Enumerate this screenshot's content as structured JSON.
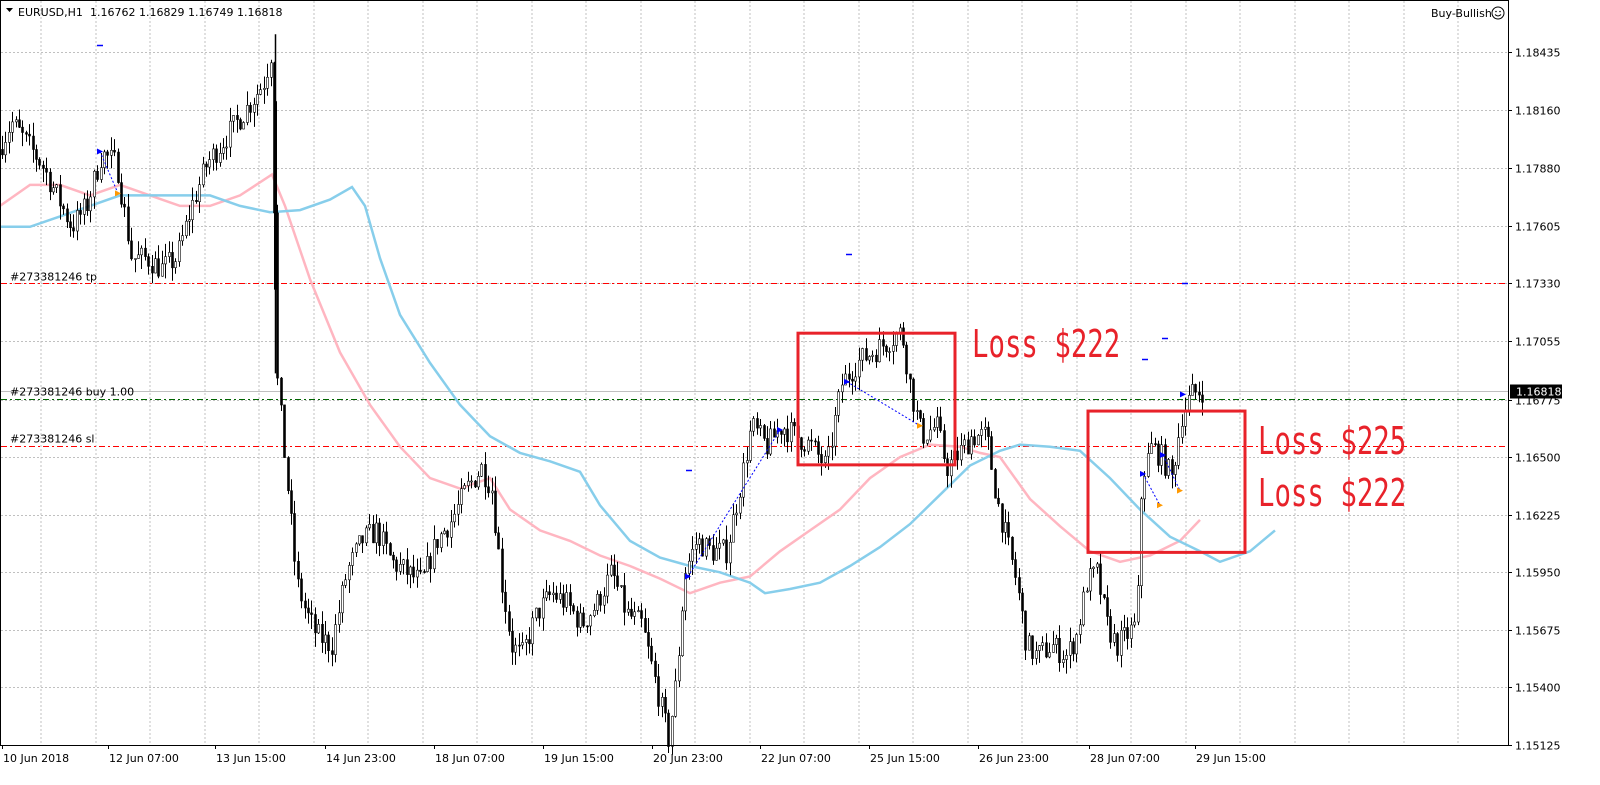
{
  "header": {
    "symbol": "EURUSD,H1",
    "ohlc": "1.16762 1.16829 1.16749 1.16818",
    "ea_name": "Buy-Bullish",
    "ea_icon": "smiley-icon"
  },
  "order_lines": {
    "tp_label": "#273381246 tp",
    "buy_label": "#273381246 buy 1.00",
    "sl_label": "#273381246 sl",
    "tp_price": 1.1733,
    "buy_price": 1.1678,
    "sl_price": 1.16555
  },
  "annotations": [
    {
      "text": "Loss $222"
    },
    {
      "text": "Loss $225"
    },
    {
      "text": "Loss $222"
    }
  ],
  "colors": {
    "candle": "#000000",
    "ma_slow": "#87ceeb",
    "ma_fast": "#ffb6c1",
    "tp_sl_line": "#ff0000",
    "buy_line": "#006400",
    "annotation": "#e8222a",
    "grid": "#c0c0c0"
  },
  "chart_data": {
    "type": "candlestick",
    "symbol": "EURUSD",
    "timeframe": "H1",
    "ylim": [
      1.15,
      1.186
    ],
    "y_ticks": [
      "1.18435",
      "1.18160",
      "1.17880",
      "1.17605",
      "1.17330",
      "1.17055",
      "1.16775",
      "1.16500",
      "1.16225",
      "1.15950",
      "1.15675",
      "1.15400",
      "1.15125"
    ],
    "x_ticks": [
      "10 Jun 2018",
      "12 Jun 07:00",
      "13 Jun 15:00",
      "14 Jun 23:00",
      "18 Jun 07:00",
      "19 Jun 15:00",
      "20 Jun 23:00",
      "22 Jun 07:00",
      "25 Jun 15:00",
      "26 Jun 23:00",
      "28 Jun 07:00",
      "29 Jun 15:00"
    ],
    "current_price": "1.16818",
    "grid": true,
    "close_path": [
      [
        0,
        1.1795
      ],
      [
        15,
        1.181
      ],
      [
        30,
        1.18
      ],
      [
        45,
        1.179
      ],
      [
        60,
        1.1775
      ],
      [
        75,
        1.176
      ],
      [
        90,
        1.177
      ],
      [
        105,
        1.1795
      ],
      [
        120,
        1.179
      ],
      [
        135,
        1.1745
      ],
      [
        150,
        1.1745
      ],
      [
        165,
        1.174
      ],
      [
        180,
        1.1745
      ],
      [
        195,
        1.177
      ],
      [
        210,
        1.179
      ],
      [
        225,
        1.18
      ],
      [
        240,
        1.181
      ],
      [
        255,
        1.182
      ],
      [
        268,
        1.183
      ],
      [
        275,
        1.1845
      ],
      [
        280,
        1.169
      ],
      [
        290,
        1.164
      ],
      [
        300,
        1.159
      ],
      [
        310,
        1.1575
      ],
      [
        320,
        1.1565
      ],
      [
        335,
        1.156
      ],
      [
        350,
        1.1595
      ],
      [
        365,
        1.161
      ],
      [
        380,
        1.1615
      ],
      [
        395,
        1.16
      ],
      [
        410,
        1.1595
      ],
      [
        425,
        1.159
      ],
      [
        440,
        1.161
      ],
      [
        455,
        1.162
      ],
      [
        470,
        1.1635
      ],
      [
        485,
        1.1645
      ],
      [
        495,
        1.1635
      ],
      [
        505,
        1.159
      ],
      [
        515,
        1.156
      ],
      [
        525,
        1.1555
      ],
      [
        540,
        1.1575
      ],
      [
        555,
        1.1585
      ],
      [
        570,
        1.158
      ],
      [
        585,
        1.157
      ],
      [
        600,
        1.158
      ],
      [
        615,
        1.1595
      ],
      [
        630,
        1.1575
      ],
      [
        645,
        1.157
      ],
      [
        660,
        1.154
      ],
      [
        672,
        1.1515
      ],
      [
        680,
        1.1545
      ],
      [
        688,
        1.1595
      ],
      [
        700,
        1.161
      ],
      [
        715,
        1.1605
      ],
      [
        730,
        1.1605
      ],
      [
        745,
        1.164
      ],
      [
        755,
        1.1665
      ],
      [
        770,
        1.1655
      ],
      [
        785,
        1.1665
      ],
      [
        800,
        1.166
      ],
      [
        815,
        1.1655
      ],
      [
        830,
        1.1645
      ],
      [
        845,
        1.1685
      ],
      [
        860,
        1.1695
      ],
      [
        875,
        1.17
      ],
      [
        890,
        1.1705
      ],
      [
        905,
        1.171
      ],
      [
        915,
        1.168
      ],
      [
        925,
        1.166
      ],
      [
        940,
        1.1665
      ],
      [
        950,
        1.1645
      ],
      [
        960,
        1.165
      ],
      [
        975,
        1.166
      ],
      [
        990,
        1.166
      ],
      [
        1000,
        1.163
      ],
      [
        1010,
        1.161
      ],
      [
        1020,
        1.159
      ],
      [
        1030,
        1.156
      ],
      [
        1040,
        1.1555
      ],
      [
        1055,
        1.156
      ],
      [
        1070,
        1.1555
      ],
      [
        1080,
        1.1565
      ],
      [
        1090,
        1.159
      ],
      [
        1100,
        1.1595
      ],
      [
        1110,
        1.157
      ],
      [
        1120,
        1.156
      ],
      [
        1130,
        1.1565
      ],
      [
        1140,
        1.157
      ],
      [
        1145,
        1.164
      ],
      [
        1155,
        1.1655
      ],
      [
        1165,
        1.165
      ],
      [
        1175,
        1.164
      ],
      [
        1185,
        1.167
      ],
      [
        1195,
        1.168
      ],
      [
        1205,
        1.1682
      ]
    ],
    "ma_fast_path": [
      [
        0,
        1.177
      ],
      [
        30,
        1.178
      ],
      [
        60,
        1.178
      ],
      [
        90,
        1.1775
      ],
      [
        120,
        1.178
      ],
      [
        150,
        1.1775
      ],
      [
        180,
        1.177
      ],
      [
        210,
        1.177
      ],
      [
        240,
        1.1775
      ],
      [
        272,
        1.1785
      ],
      [
        285,
        1.177
      ],
      [
        310,
        1.1735
      ],
      [
        340,
        1.17
      ],
      [
        370,
        1.1675
      ],
      [
        400,
        1.1655
      ],
      [
        430,
        1.164
      ],
      [
        460,
        1.1635
      ],
      [
        490,
        1.164
      ],
      [
        510,
        1.1625
      ],
      [
        540,
        1.1615
      ],
      [
        570,
        1.161
      ],
      [
        600,
        1.1603
      ],
      [
        630,
        1.1598
      ],
      [
        660,
        1.1592
      ],
      [
        690,
        1.1585
      ],
      [
        720,
        1.159
      ],
      [
        750,
        1.1593
      ],
      [
        780,
        1.1605
      ],
      [
        810,
        1.1615
      ],
      [
        840,
        1.1625
      ],
      [
        870,
        1.164
      ],
      [
        900,
        1.165
      ],
      [
        930,
        1.1656
      ],
      [
        960,
        1.1655
      ],
      [
        980,
        1.1652
      ],
      [
        1000,
        1.165
      ],
      [
        1030,
        1.163
      ],
      [
        1060,
        1.1617
      ],
      [
        1090,
        1.1605
      ],
      [
        1120,
        1.16
      ],
      [
        1150,
        1.1603
      ],
      [
        1180,
        1.161
      ],
      [
        1200,
        1.162
      ]
    ],
    "ma_slow_path": [
      [
        0,
        1.176
      ],
      [
        30,
        1.176
      ],
      [
        60,
        1.1765
      ],
      [
        90,
        1.177
      ],
      [
        120,
        1.1775
      ],
      [
        150,
        1.1775
      ],
      [
        180,
        1.1775
      ],
      [
        210,
        1.1775
      ],
      [
        240,
        1.177
      ],
      [
        270,
        1.1767
      ],
      [
        300,
        1.1768
      ],
      [
        330,
        1.1773
      ],
      [
        352,
        1.1779
      ],
      [
        365,
        1.177
      ],
      [
        380,
        1.1745
      ],
      [
        400,
        1.1718
      ],
      [
        430,
        1.1695
      ],
      [
        460,
        1.1675
      ],
      [
        490,
        1.166
      ],
      [
        520,
        1.1652
      ],
      [
        550,
        1.1648
      ],
      [
        580,
        1.1643
      ],
      [
        600,
        1.1627
      ],
      [
        630,
        1.161
      ],
      [
        660,
        1.1602
      ],
      [
        690,
        1.1598
      ],
      [
        720,
        1.1595
      ],
      [
        750,
        1.159
      ],
      [
        765,
        1.1585
      ],
      [
        790,
        1.1587
      ],
      [
        820,
        1.159
      ],
      [
        850,
        1.1598
      ],
      [
        880,
        1.1607
      ],
      [
        910,
        1.1618
      ],
      [
        940,
        1.1632
      ],
      [
        970,
        1.1646
      ],
      [
        1000,
        1.1653
      ],
      [
        1020,
        1.1656
      ],
      [
        1050,
        1.1655
      ],
      [
        1080,
        1.1653
      ],
      [
        1110,
        1.164
      ],
      [
        1140,
        1.1625
      ],
      [
        1170,
        1.1612
      ],
      [
        1200,
        1.1605
      ],
      [
        1220,
        1.16
      ],
      [
        1250,
        1.1605
      ],
      [
        1275,
        1.1615
      ]
    ],
    "trade_arrows": [
      [
        100,
        1.1796
      ],
      [
        688,
        1.1593
      ],
      [
        780,
        1.1663
      ],
      [
        847,
        1.1686
      ],
      [
        1143,
        1.1642
      ],
      [
        1163,
        1.1651
      ],
      [
        1183,
        1.168
      ],
      [
        118,
        1.1776
      ],
      [
        920,
        1.1665
      ],
      [
        1160,
        1.1627
      ],
      [
        1180,
        1.1634
      ]
    ],
    "marker_dashes": [
      [
        100,
        1.1847
      ],
      [
        849,
        1.1747
      ],
      [
        689,
        1.1644
      ],
      [
        1145,
        1.1697
      ],
      [
        1165,
        1.1707
      ],
      [
        1185,
        1.1733
      ]
    ],
    "boxes": [
      [
        798,
        1.17092,
        955,
        1.16463
      ],
      [
        1088,
        1.1672,
        1245,
        1.16045
      ]
    ]
  }
}
